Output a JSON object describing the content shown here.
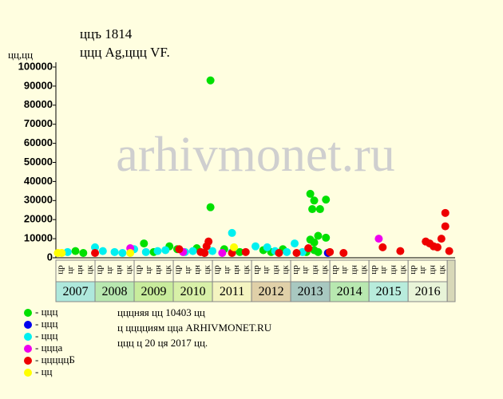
{
  "chart_data": {
    "type": "scatter",
    "title": "ццъ 1814",
    "subtitle": "ццц Ag,ццц VF.",
    "y_label": "цц,цц",
    "watermark": "arhivmonet.ru",
    "ylim": [
      0,
      100000
    ],
    "yticks": [
      0,
      10000,
      20000,
      30000,
      40000,
      50000,
      60000,
      70000,
      80000,
      90000,
      100000
    ],
    "xlim": [
      2007,
      2017.2
    ],
    "xticks": [
      2007,
      2008,
      2009,
      2010,
      2011,
      2012,
      2013,
      2014,
      2015,
      2016
    ],
    "year_colors": [
      "#aee8dc",
      "#b8e8b0",
      "#c8ec9c",
      "#d8f0a8",
      "#f4f4c0",
      "#e0d0a8",
      "#a8c8c0",
      "#b8e8b0",
      "#b8ecdc",
      "#e8f4d8"
    ],
    "quarter_labels": [
      "цр",
      "цг",
      "цн",
      "цк"
    ],
    "series": [
      {
        "name": "- ццц",
        "color": "#00e000",
        "x": [
          2007.5,
          2007.7,
          2009.25,
          2009.5,
          2009.9,
          2010.1,
          2010.6,
          2010.95,
          2010.95,
          2011.3,
          2011.7,
          2012.3,
          2012.5,
          2012.8,
          2013.5,
          2013.55,
          2013.6,
          2013.7,
          2013.75,
          2013.9,
          2013.9,
          2013.5,
          2013.6,
          2013.6,
          2013.7,
          2013.4
        ],
        "values": [
          3500,
          2500,
          7500,
          3000,
          6000,
          4500,
          5000,
          93000,
          26500,
          4500,
          3000,
          4000,
          3000,
          4500,
          33500,
          25500,
          30000,
          11500,
          25500,
          30500,
          10500,
          9500,
          8000,
          4000,
          3000,
          3000
        ]
      },
      {
        "name": "- ццц",
        "color": "#0000ee",
        "x": [
          2013.95
        ],
        "values": [
          2500
        ]
      },
      {
        "name": "- ццц",
        "color": "#00f0f0",
        "x": [
          2007.3,
          2008,
          2008.2,
          2008.5,
          2008.7,
          2009,
          2009.3,
          2009.6,
          2009.8,
          2010.3,
          2010.5,
          2011,
          2011.5,
          2011.5,
          2012.1,
          2012.4,
          2012.6,
          2012.9,
          2013.1,
          2013.3
        ],
        "values": [
          3000,
          5500,
          3500,
          3000,
          2500,
          4500,
          3000,
          3500,
          4000,
          3000,
          3500,
          3500,
          13000,
          3000,
          6000,
          5500,
          3500,
          3000,
          7500,
          3000
        ]
      },
      {
        "name": "- ццца",
        "color": "#ee00ee",
        "x": [
          2008.9,
          2010.25,
          2011.25,
          2015.25
        ],
        "values": [
          5000,
          3000,
          2500,
          10000
        ]
      },
      {
        "name": "- цццццБ",
        "color": "#ee0000",
        "x": [
          2008,
          2010.15,
          2010.7,
          2010.8,
          2010.9,
          2010.85,
          2011.5,
          2011.85,
          2012.7,
          2013.15,
          2013.45,
          2014,
          2014.35,
          2015.35,
          2015.8,
          2016.45,
          2016.55,
          2016.65,
          2016.75,
          2016.85,
          2016.95,
          2016.95,
          2017.05
        ],
        "values": [
          2500,
          4500,
          3000,
          2500,
          8500,
          6000,
          2500,
          3000,
          2500,
          2500,
          5000,
          3000,
          2500,
          5500,
          3500,
          8500,
          7500,
          6000,
          5500,
          10000,
          23500,
          16500,
          3500
        ]
      },
      {
        "name": "- цц",
        "color": "#ffff00",
        "x": [
          2007.05,
          2007.15,
          2008.9,
          2011.55
        ],
        "values": [
          2500,
          2500,
          2500,
          5500
        ]
      }
    ],
    "notes": [
      "цццняя цц 10403 цц",
      "ц цццциям цца ARHIVMONET.RU",
      "ццц ц 20 ця 2017 цц."
    ]
  }
}
